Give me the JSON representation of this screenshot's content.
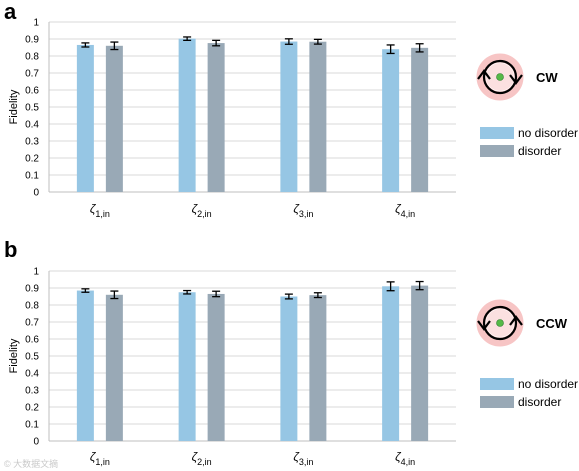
{
  "colors": {
    "no_disorder": "#96c6e4",
    "disorder": "#99a9b6",
    "grid": "#d9d9d9",
    "axis": "#bfbfbf",
    "ring_glow": "#f4b2b2",
    "ring": "#000000",
    "dot": "#55b947"
  },
  "watermark": "© 大数据文摘",
  "chart_data": [
    {
      "type": "bar",
      "panel_label": "a",
      "ylabel": "Fidelity",
      "ylim": [
        0,
        1
      ],
      "yticks": [
        "0",
        "0.1",
        "0.2",
        "0.3",
        "0.4",
        "0.5",
        "0.6",
        "0.7",
        "0.8",
        "0.9",
        "1"
      ],
      "grid": true,
      "categories": [
        {
          "symbol": "ζ",
          "sub": "1,in"
        },
        {
          "symbol": "ζ",
          "sub": "2,in"
        },
        {
          "symbol": "ζ",
          "sub": "3,in"
        },
        {
          "symbol": "ζ",
          "sub": "4,in"
        }
      ],
      "series": [
        {
          "name": "no disorder",
          "values": [
            0.865,
            0.902,
            0.885,
            0.84
          ],
          "errors": [
            0.012,
            0.01,
            0.016,
            0.025
          ]
        },
        {
          "name": "disorder",
          "values": [
            0.86,
            0.876,
            0.884,
            0.848
          ],
          "errors": [
            0.022,
            0.016,
            0.014,
            0.024
          ]
        }
      ],
      "legend_position": "right",
      "direction_label": "CW",
      "direction": "cw"
    },
    {
      "type": "bar",
      "panel_label": "b",
      "ylabel": "Fidelity",
      "ylim": [
        0,
        1
      ],
      "yticks": [
        "0",
        "0.1",
        "0.2",
        "0.3",
        "0.4",
        "0.5",
        "0.6",
        "0.7",
        "0.8",
        "0.9",
        "1"
      ],
      "grid": true,
      "categories": [
        {
          "symbol": "ζ",
          "sub": "1,in"
        },
        {
          "symbol": "ζ",
          "sub": "2,in"
        },
        {
          "symbol": "ζ",
          "sub": "3,in"
        },
        {
          "symbol": "ζ",
          "sub": "4,in"
        }
      ],
      "series": [
        {
          "name": "no disorder",
          "values": [
            0.885,
            0.875,
            0.85,
            0.91
          ],
          "errors": [
            0.01,
            0.01,
            0.014,
            0.026
          ]
        },
        {
          "name": "disorder",
          "values": [
            0.86,
            0.865,
            0.858,
            0.914
          ],
          "errors": [
            0.022,
            0.016,
            0.014,
            0.024
          ]
        }
      ],
      "legend_position": "right",
      "direction_label": "CCW",
      "direction": "ccw"
    }
  ]
}
